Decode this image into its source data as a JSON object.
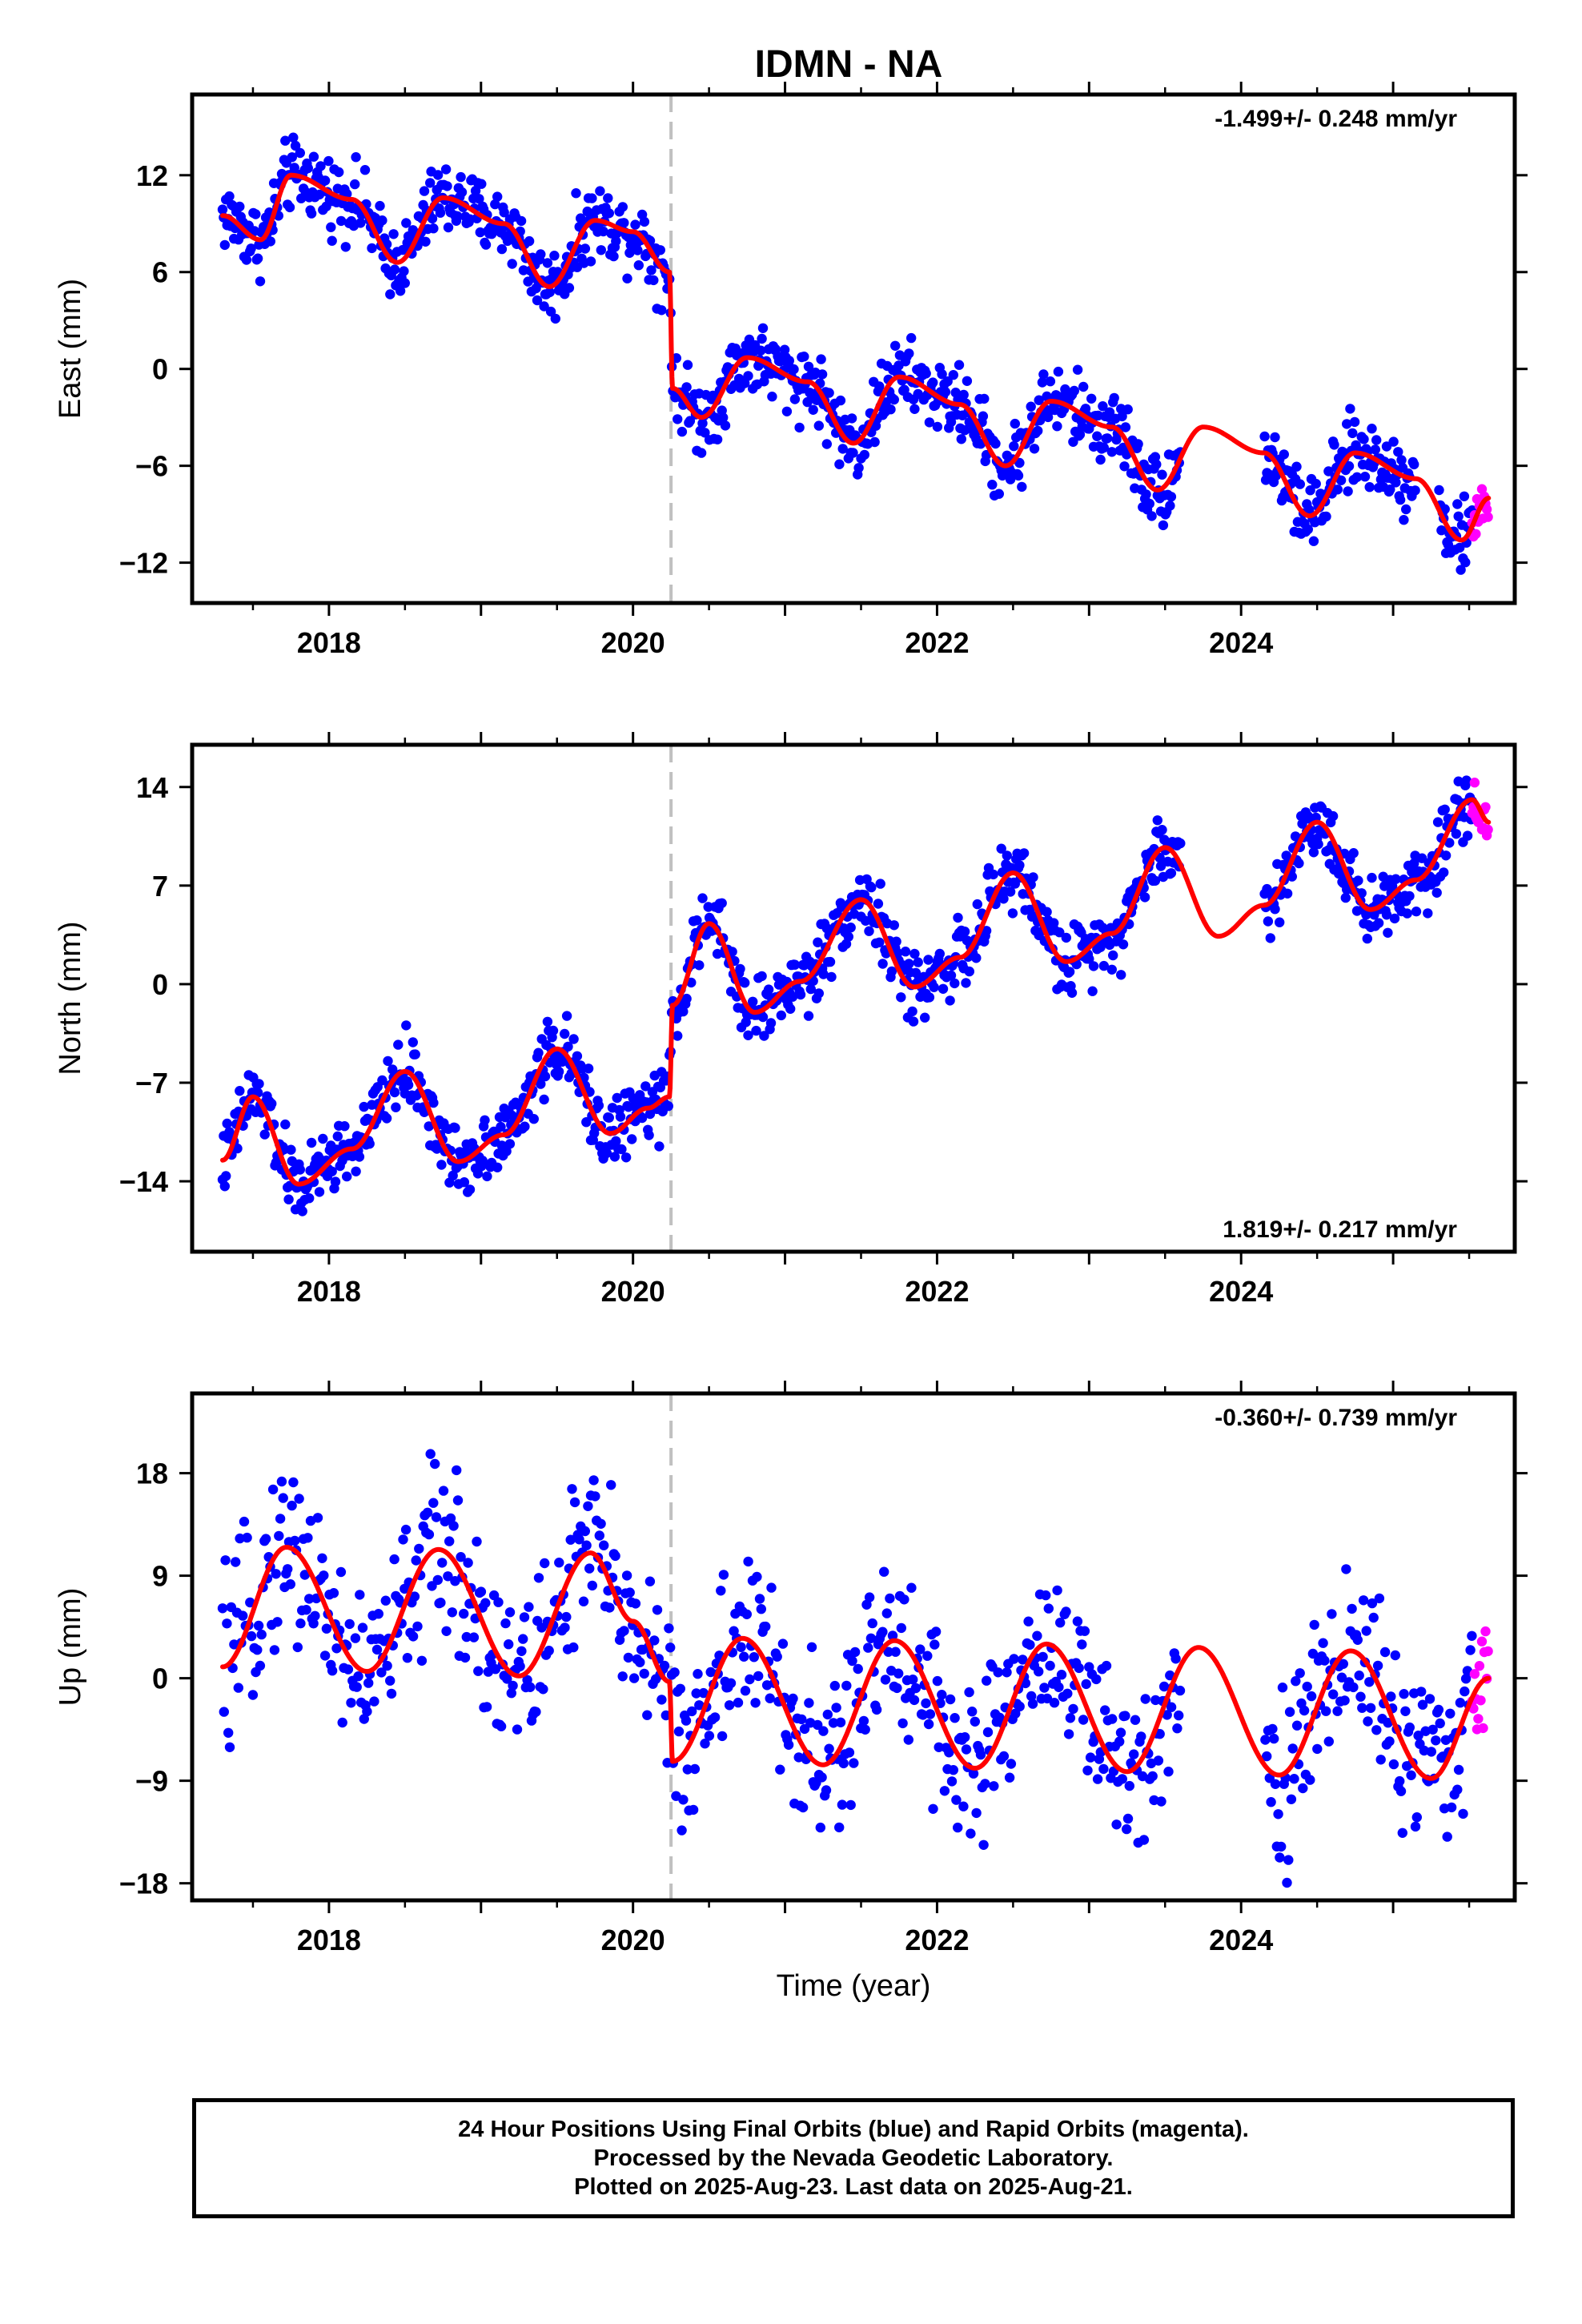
{
  "figure": {
    "title": "IDMN - NA",
    "xlabel": "Time (year)",
    "colors": {
      "final_points": "#0000ff",
      "rapid_points": "#ff00ff",
      "model_line": "#ff0000",
      "offset_line": "#c0c0c0"
    },
    "footer": [
      "24 Hour Positions Using Final Orbits (blue) and Rapid Orbits (magenta).",
      "Processed by the Nevada Geodetic Laboratory.",
      "Plotted on 2025-Aug-23. Last data on 2025-Aug-21."
    ]
  },
  "chart_data": [
    {
      "type": "scatter",
      "ylabel": "East (mm)",
      "rate_label": "-1.499+/- 0.248 mm/yr",
      "rate_position": "top-right",
      "xlim": [
        2017.1,
        2025.8
      ],
      "ylim": [
        -14.5,
        17
      ],
      "x_ticks": [
        2018,
        2020,
        2022,
        2024
      ],
      "y_ticks": [
        12,
        6,
        0,
        -6,
        -12
      ],
      "offset_epoch": 2020.25,
      "data_gap": [
        2023.6,
        2024.15
      ],
      "rapid_segment": [
        2025.52,
        2025.63
      ],
      "model_line": {
        "x": [
          2017.3,
          2017.55,
          2017.75,
          2018.15,
          2018.45,
          2018.75,
          2019.15,
          2019.45,
          2019.75,
          2020.0,
          2020.24,
          2020.26,
          2020.45,
          2020.75,
          2021.15,
          2021.45,
          2021.75,
          2022.15,
          2022.45,
          2022.75,
          2023.15,
          2023.45,
          2023.75,
          2024.15,
          2024.45,
          2024.75,
          2025.15,
          2025.45,
          2025.63
        ],
        "y": [
          9.5,
          8.0,
          12.0,
          10.5,
          6.6,
          10.6,
          9.0,
          5.1,
          9.2,
          8.5,
          6.0,
          -1.2,
          -3.0,
          0.7,
          -0.8,
          -4.6,
          -0.5,
          -2.2,
          -6.0,
          -2.0,
          -3.6,
          -7.5,
          -3.6,
          -5.2,
          -9.1,
          -5.2,
          -6.8,
          -10.6,
          -8.0
        ]
      }
    },
    {
      "type": "scatter",
      "ylabel": "North (mm)",
      "rate_label": "1.819+/- 0.217 mm/yr",
      "rate_position": "bottom-right",
      "xlim": [
        2017.1,
        2025.8
      ],
      "ylim": [
        -19,
        17
      ],
      "x_ticks": [
        2018,
        2020,
        2022,
        2024
      ],
      "y_ticks": [
        14,
        7,
        0,
        -7,
        -14
      ],
      "offset_epoch": 2020.25,
      "data_gap": [
        2023.6,
        2024.15
      ],
      "rapid_segment": [
        2025.52,
        2025.63
      ],
      "model_line": {
        "x": [
          2017.3,
          2017.5,
          2017.8,
          2018.15,
          2018.5,
          2018.85,
          2019.15,
          2019.5,
          2019.85,
          2020.1,
          2020.24,
          2020.26,
          2020.5,
          2020.8,
          2021.1,
          2021.5,
          2021.85,
          2022.15,
          2022.5,
          2022.85,
          2023.15,
          2023.5,
          2023.85,
          2024.15,
          2024.5,
          2024.85,
          2025.15,
          2025.52,
          2025.63
        ],
        "y": [
          -12.5,
          -8.0,
          -14.2,
          -11.7,
          -6.2,
          -12.6,
          -10.7,
          -4.6,
          -10.6,
          -8.8,
          -8.0,
          -1.5,
          4.3,
          -2.0,
          0.2,
          6.0,
          -0.2,
          1.9,
          7.9,
          1.6,
          3.6,
          9.7,
          3.4,
          5.6,
          11.5,
          5.3,
          7.4,
          13.1,
          11.5
        ]
      }
    },
    {
      "type": "scatter",
      "ylabel": "Up (mm)",
      "rate_label": "-0.360+/- 0.739 mm/yr",
      "rate_position": "top-right",
      "xlim": [
        2017.1,
        2025.8
      ],
      "ylim": [
        -19.5,
        25
      ],
      "x_ticks": [
        2018,
        2020,
        2022,
        2024
      ],
      "y_ticks": [
        18,
        9,
        0,
        -9,
        -18
      ],
      "offset_epoch": 2020.25,
      "data_gap": [
        2023.6,
        2024.15
      ],
      "rapid_segment": [
        2025.52,
        2025.63
      ],
      "model_line": {
        "x": [
          2017.3,
          2017.72,
          2018.25,
          2018.72,
          2019.25,
          2019.72,
          2020.0,
          2020.24,
          2020.26,
          2020.72,
          2021.25,
          2021.72,
          2022.25,
          2022.72,
          2023.25,
          2023.72,
          2024.25,
          2024.72,
          2025.25,
          2025.63
        ],
        "y": [
          1.0,
          11.5,
          0.6,
          11.3,
          0.2,
          11.0,
          5.0,
          -0.3,
          -7.3,
          3.5,
          -7.6,
          3.3,
          -7.9,
          3.0,
          -8.2,
          2.7,
          -8.5,
          2.4,
          -8.8,
          0.0
        ]
      }
    }
  ]
}
